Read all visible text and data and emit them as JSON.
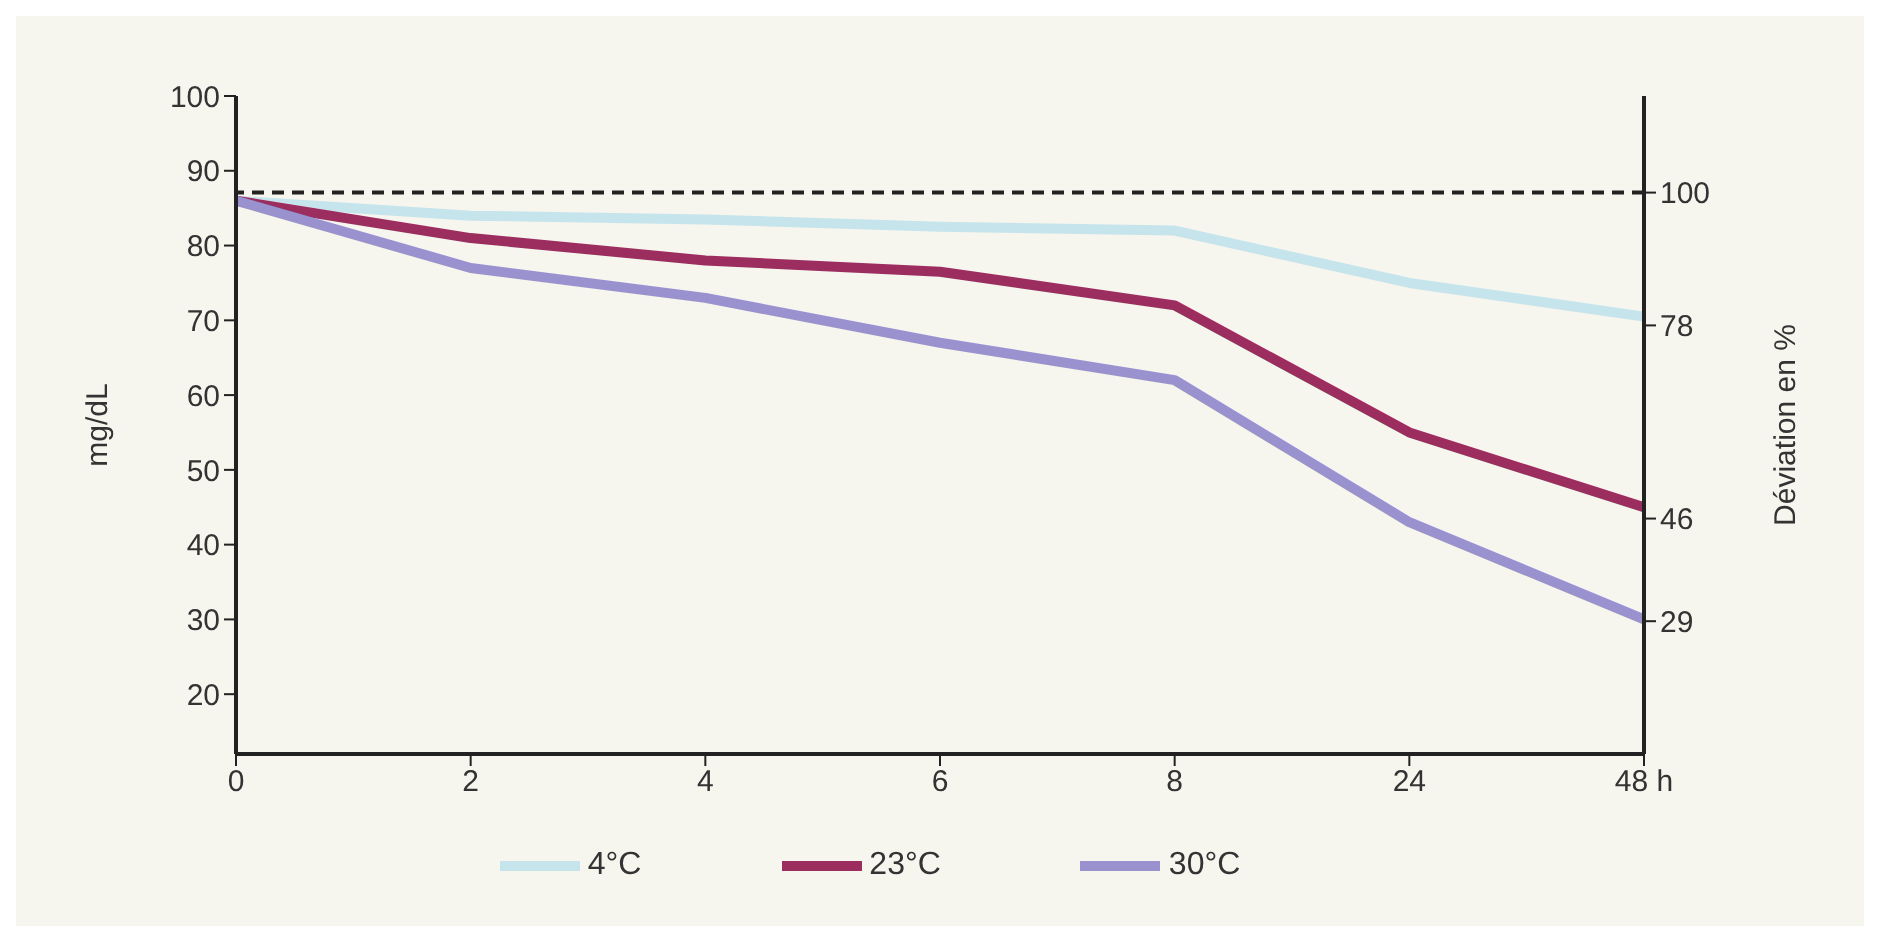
{
  "chart_data": {
    "type": "line",
    "ylabel": "mg/dL",
    "y2label": "Déviation en %",
    "categories": [
      "0",
      "2",
      "4",
      "6",
      "8",
      "24",
      "48 h"
    ],
    "series": [
      {
        "name": "4°C",
        "color": "#c6e4ec",
        "values": [
          86,
          84,
          83.5,
          82.5,
          82,
          75,
          70.5
        ]
      },
      {
        "name": "23°C",
        "color": "#9b2d5f",
        "values": [
          86,
          81,
          78,
          76.5,
          72,
          55,
          45
        ]
      },
      {
        "name": "30°C",
        "color": "#9a92cf",
        "values": [
          86,
          77,
          73,
          67,
          62,
          43,
          30
        ]
      }
    ],
    "ylim": [
      12,
      100
    ],
    "yticks": [
      20,
      30,
      40,
      50,
      60,
      70,
      80,
      90,
      100
    ],
    "y2lim": [
      7,
      116
    ],
    "y2ticks": [
      29,
      46,
      78,
      100
    ],
    "ref_lines": [
      {
        "axis": "y2",
        "value": 100,
        "color": "#222222",
        "line_style": "dashed"
      }
    ],
    "grid": false,
    "legend": "bottom",
    "marker": "none",
    "line_style": "solid"
  }
}
